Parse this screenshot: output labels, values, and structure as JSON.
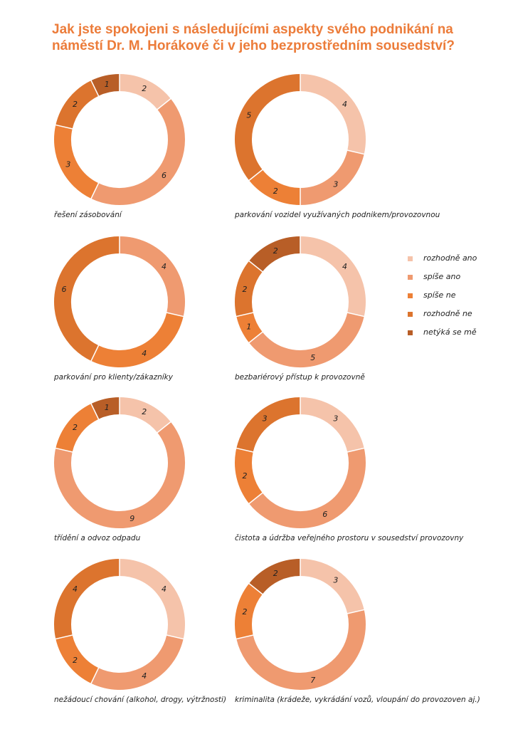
{
  "title": {
    "line1": "Jak jste spokojeni s následujícími aspekty svého podnikání na",
    "line2": "náměstí Dr. M. Horákové či v jeho bezprostředním sousedství?"
  },
  "colors": [
    "#f5c3aa",
    "#ef9a70",
    "#ed8036",
    "#dc742e",
    "#b85e27"
  ],
  "legend": [
    "rozhodně ano",
    "spíše ano",
    "spíše ne",
    "rozhodně ne",
    "netýká se mě"
  ],
  "chart_data": [
    {
      "type": "pie",
      "title": "řešení zásobování",
      "categories": [
        "rozhodně ano",
        "spíše ano",
        "spíše ne",
        "rozhodně ne",
        "netýká se mě"
      ],
      "values": [
        2,
        6,
        3,
        2,
        1
      ]
    },
    {
      "type": "pie",
      "title": "parkování vozidel využívaných podnikem/provozovnou",
      "categories": [
        "rozhodně ano",
        "spíše ano",
        "spíše ne",
        "rozhodně ne",
        "netýká se mě"
      ],
      "values": [
        4,
        3,
        2,
        5,
        0
      ]
    },
    {
      "type": "pie",
      "title": "parkování pro klienty/zákazníky",
      "categories": [
        "rozhodně ano",
        "spíše ano",
        "spíše ne",
        "rozhodně ne",
        "netýká se mě"
      ],
      "values": [
        0,
        4,
        4,
        6,
        0
      ]
    },
    {
      "type": "pie",
      "title": "bezbariérový přístup k provozovně",
      "categories": [
        "rozhodně ano",
        "spíše ano",
        "spíše ne",
        "rozhodně ne",
        "netýká se mě"
      ],
      "values": [
        4,
        5,
        1,
        2,
        2
      ]
    },
    {
      "type": "pie",
      "title": "třídění a odvoz odpadu",
      "categories": [
        "rozhodně ano",
        "spíše ano",
        "spíše ne",
        "rozhodně ne",
        "netýká se mě"
      ],
      "values": [
        2,
        9,
        2,
        0,
        1
      ]
    },
    {
      "type": "pie",
      "title": "čistota a údržba veřejného prostoru v sousedství provozovny",
      "categories": [
        "rozhodně ano",
        "spíše ano",
        "spíše ne",
        "rozhodně ne",
        "netýká se mě"
      ],
      "values": [
        3,
        6,
        2,
        3,
        0
      ]
    },
    {
      "type": "pie",
      "title": "nežádoucí chování (alkohol, drogy, výtržnosti)",
      "categories": [
        "rozhodně ano",
        "spíše ano",
        "spíše ne",
        "rozhodně ne",
        "netýká se mě"
      ],
      "values": [
        4,
        4,
        2,
        4,
        0
      ]
    },
    {
      "type": "pie",
      "title": "kriminalita (krádeže, vykrádání vozů, vloupání do provozoven aj.)",
      "categories": [
        "rozhodně ano",
        "spíše ano",
        "spíše ne",
        "rozhodně ne",
        "netýká se mě"
      ],
      "values": [
        3,
        7,
        2,
        0,
        2
      ]
    }
  ]
}
